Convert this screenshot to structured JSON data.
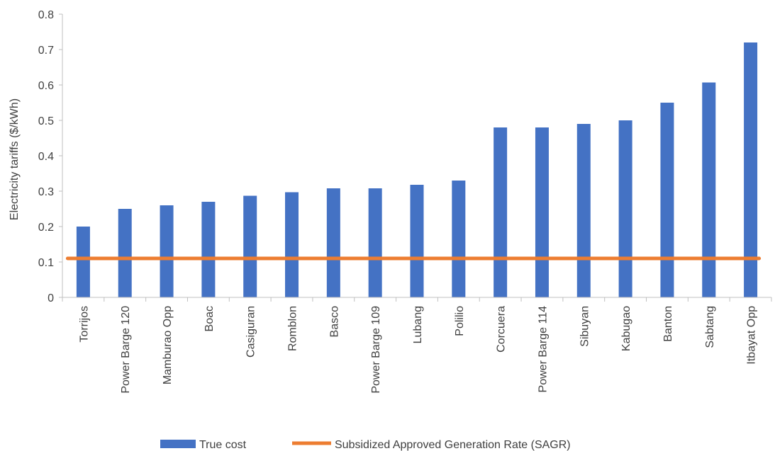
{
  "chart_data": {
    "type": "bar",
    "title": "",
    "xlabel": "",
    "ylabel": "Electricity tariffs ($/kWh)",
    "ylim": [
      0,
      0.8
    ],
    "yticks": [
      "0",
      "0.1",
      "0.2",
      "0.3",
      "0.4",
      "0.5",
      "0.6",
      "0.7",
      "0.8"
    ],
    "grid": false,
    "legend_position": "bottom",
    "categories": [
      "Torrijos",
      "Power Barge 120",
      "Mamburao Opp",
      "Boac",
      "Casiguran",
      "Romblon",
      "Basco",
      "Power Barge 109",
      "Lubang",
      "Polilio",
      "Corcuera",
      "Power Barge 114",
      "Sibuyan",
      "Kabugao",
      "Banton",
      "Sabtang",
      "Itbayat Opp"
    ],
    "series": [
      {
        "name": "True cost",
        "type": "bar",
        "color": "#4472C4",
        "values": [
          0.2,
          0.25,
          0.26,
          0.27,
          0.287,
          0.297,
          0.308,
          0.308,
          0.318,
          0.33,
          0.48,
          0.48,
          0.49,
          0.5,
          0.55,
          0.607,
          0.72
        ]
      },
      {
        "name": "Subsidized Approved Generation Rate (SAGR)",
        "type": "line",
        "color": "#ED7D31",
        "values": [
          0.11,
          0.11,
          0.11,
          0.11,
          0.11,
          0.11,
          0.11,
          0.11,
          0.11,
          0.11,
          0.11,
          0.11,
          0.11,
          0.11,
          0.11,
          0.11,
          0.11
        ]
      }
    ]
  }
}
